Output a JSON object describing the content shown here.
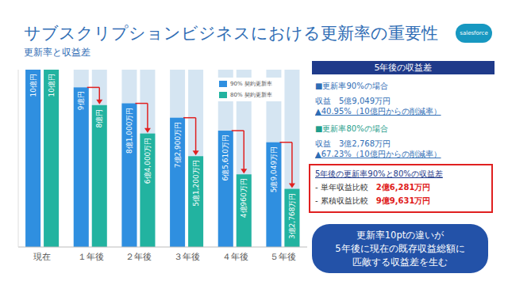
{
  "title": "サブスクリプションビジネスにおける更新率の重要性",
  "subtitle": "更新率と収益差",
  "logo": "salesforce",
  "chart_data": {
    "type": "bar",
    "categories": [
      "現在",
      "１年後",
      "２年後",
      "３年後",
      "４年後",
      "５年後"
    ],
    "series": [
      {
        "name": "90% 契約更新率",
        "color": "#2f8fe0",
        "values": [
          10,
          9,
          8.1,
          7.29,
          6.561,
          5.9049
        ],
        "value_labels": [
          "10億円",
          "9億円",
          "8億1,000万円",
          "7億2,900万円",
          "6億5,610万円",
          "5億9,049万円"
        ]
      },
      {
        "name": "80% 契約更新率",
        "color": "#22b3a0",
        "values": [
          10,
          8,
          6.4,
          5.12,
          4.096,
          3.2768
        ],
        "value_labels": [
          "10億円",
          "8億円",
          "6億4,000万円",
          "5億1,200万円",
          "4億960万円",
          "3億2,768万円"
        ]
      }
    ],
    "ylim": [
      0,
      10
    ],
    "tick_labels": "x",
    "grid": false,
    "legend": "upper right",
    "data_labels": true
  },
  "summary": {
    "header": "5年後の収益差",
    "cases": [
      {
        "heading": "■更新率90%の場合",
        "revenue_label": "収益",
        "revenue": "5億9,049万円",
        "reduction": "▲40.95%（10億円からの削減率）"
      },
      {
        "heading": "■更新率80%の場合",
        "revenue_label": "収益",
        "revenue": "3億2,768万円",
        "reduction": "▲67.23%（10億円からの削減率）"
      }
    ],
    "difference": {
      "title": "5年後の更新率90%と80%の収益差",
      "rows": [
        {
          "label": "- 単年収益比較",
          "value": "2億6,281万円"
        },
        {
          "label": "- 累積収益比較",
          "value": "9億9,631万円"
        }
      ]
    },
    "message": [
      "更新率10ptの違いが",
      "5年後に現在の既存収益総額に",
      "匹敵する収益差を生む"
    ]
  }
}
